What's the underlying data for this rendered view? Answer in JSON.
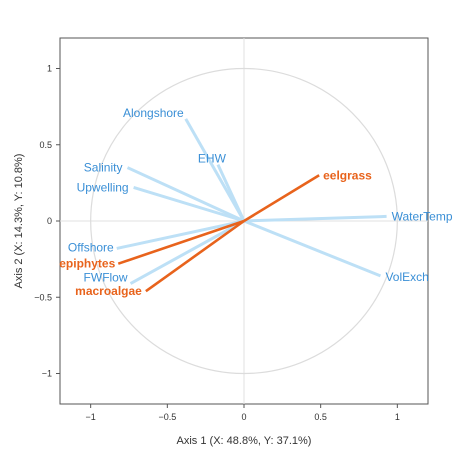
{
  "chart_data": {
    "type": "biplot",
    "xlabel": "Axis 1 (X: 48.8%, Y: 37.1%)",
    "ylabel": "Axis 2 (X: 14.3%, Y: 10.8%)",
    "xlim": [
      -1.2,
      1.2
    ],
    "ylim": [
      -1.2,
      1.2
    ],
    "xticks": [
      -1,
      -0.5,
      0,
      0.5,
      1
    ],
    "yticks": [
      -1,
      -0.5,
      0,
      0.5,
      1
    ],
    "xtick_labels": [
      "−1",
      "−0.5",
      "0",
      "0.5",
      "1"
    ],
    "ytick_labels": [
      "−1",
      "−0.5",
      "0",
      "0.5",
      "1"
    ],
    "grid": false,
    "zero_lines": true,
    "unit_circle": true,
    "colors": {
      "x_block": "#bde0f6",
      "x_label": "#3a8fd6",
      "y_block": "#e8631c",
      "circle": "#dcdcdc",
      "zero": "#e0e0e0",
      "frame": "#555555"
    },
    "series": [
      {
        "block": "x",
        "vectors": [
          {
            "name": "Alongshore",
            "x": -0.38,
            "y": 0.67
          },
          {
            "name": "EHW",
            "x": -0.17,
            "y": 0.37
          },
          {
            "name": "Salinity",
            "x": -0.76,
            "y": 0.35
          },
          {
            "name": "Upwelling",
            "x": -0.72,
            "y": 0.22
          },
          {
            "name": "WaterTemp",
            "x": 0.93,
            "y": 0.03
          },
          {
            "name": "VolExch",
            "x": 0.89,
            "y": -0.36
          },
          {
            "name": "Offshore",
            "x": -0.83,
            "y": -0.18
          },
          {
            "name": "FWFlow",
            "x": -0.74,
            "y": -0.41
          }
        ]
      },
      {
        "block": "y",
        "vectors": [
          {
            "name": "eelgrass",
            "x": 0.49,
            "y": 0.3
          },
          {
            "name": "epiphytes",
            "x": -0.82,
            "y": -0.28
          },
          {
            "name": "macroalgae",
            "x": -0.64,
            "y": -0.46
          }
        ]
      }
    ]
  }
}
